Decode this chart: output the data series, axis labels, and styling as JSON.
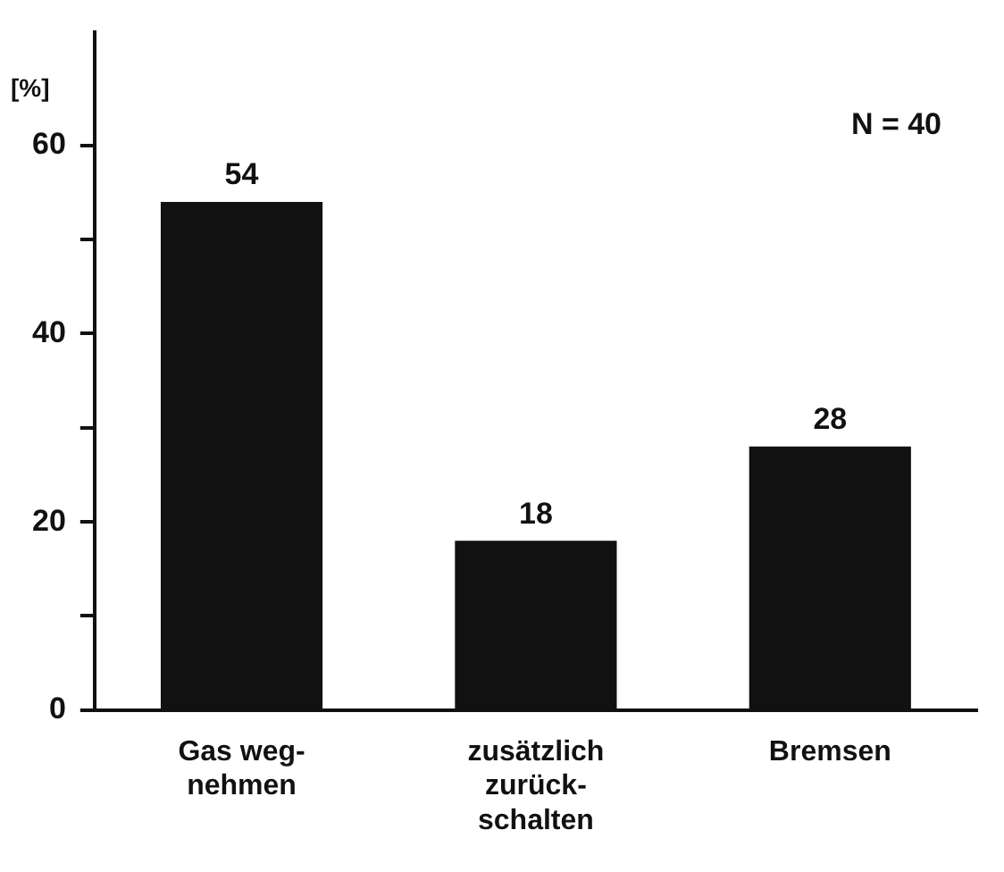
{
  "chart_data": {
    "type": "bar",
    "ylabel": "[%]",
    "categories": [
      "Gas weg-\nnehmen",
      "zusätzlich\nzurück-\nschalten",
      "Bremsen"
    ],
    "values": [
      54,
      18,
      28
    ],
    "color": "#111111",
    "ylim": [
      0,
      72
    ],
    "yticks": [
      0,
      {
        "value": 10,
        "label": null
      },
      20,
      {
        "value": 30,
        "label": null
      },
      40,
      {
        "value": 50,
        "label": null
      },
      60
    ],
    "grid": false,
    "data_labels": true,
    "annotations": [
      "N = 40"
    ]
  }
}
